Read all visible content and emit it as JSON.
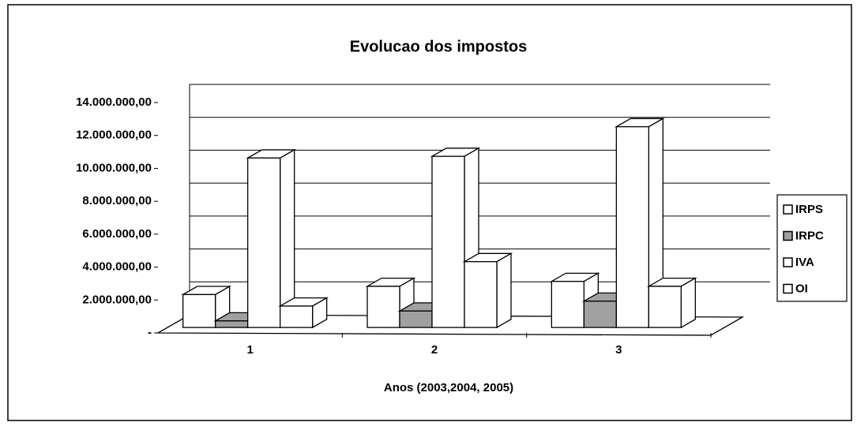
{
  "chart_data": {
    "type": "bar3d",
    "title": "Evolucao dos impostos",
    "x_label": "Anos (2003,2004, 2005)",
    "categories": [
      "1",
      "2",
      "3"
    ],
    "series": [
      {
        "name": "IRPS",
        "color": "#ffffff",
        "values": [
          2000000,
          2500000,
          2800000
        ]
      },
      {
        "name": "IRPC",
        "color": "#a0a0a0",
        "values": [
          400000,
          1000000,
          1600000
        ]
      },
      {
        "name": "IVA",
        "color": "#ffffff",
        "values": [
          10300000,
          10400000,
          12200000
        ]
      },
      {
        "name": "OI",
        "color": "#ffffff",
        "values": [
          1300000,
          4000000,
          2500000
        ]
      }
    ],
    "ylim": [
      0,
      14000000
    ],
    "yticks": [
      {
        "value": 0,
        "label": "-"
      },
      {
        "value": 2000000,
        "label": "2.000.000,00"
      },
      {
        "value": 4000000,
        "label": "4.000.000,00"
      },
      {
        "value": 6000000,
        "label": "6.000.000,00"
      },
      {
        "value": 8000000,
        "label": "8.000.000,00"
      },
      {
        "value": 10000000,
        "label": "10.000.000,00"
      },
      {
        "value": 12000000,
        "label": "12.000.000,00"
      },
      {
        "value": 14000000,
        "label": "14.000.000,00"
      }
    ],
    "grid": true,
    "legend": "right"
  }
}
